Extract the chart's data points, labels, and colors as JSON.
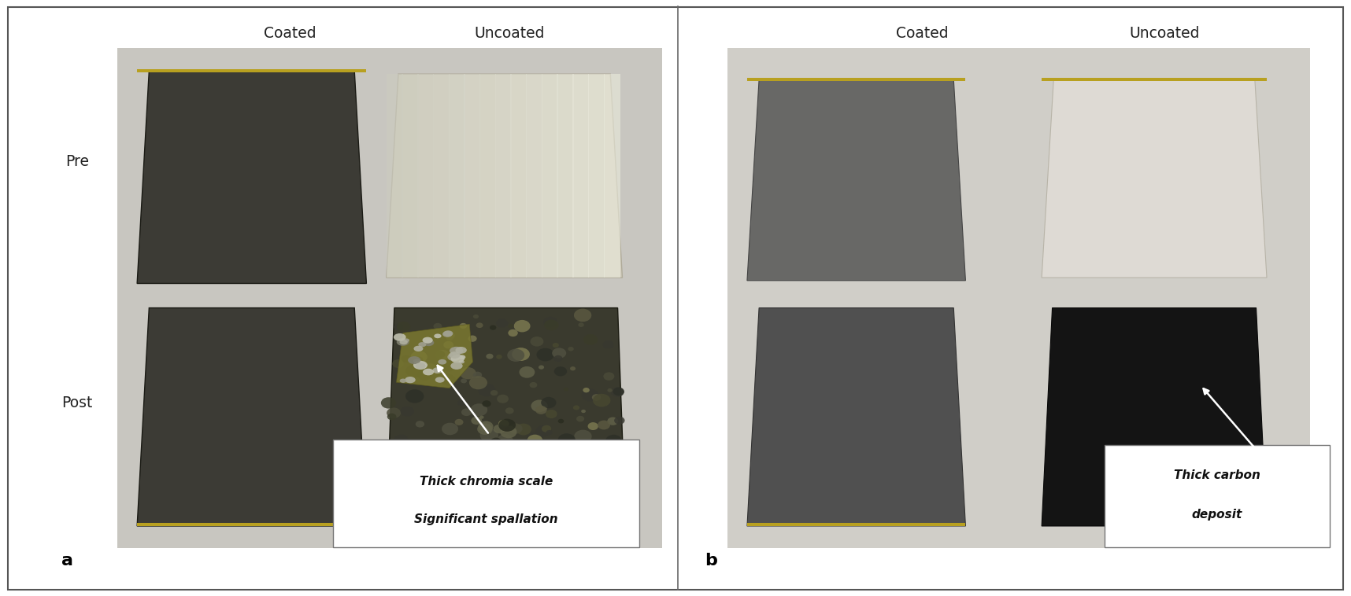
{
  "fig_width": 17.16,
  "fig_height": 7.58,
  "dpi": 100,
  "bg_color": "#ffffff",
  "border_color": "#888888",
  "photo_bg_a": "#c8c6c0",
  "photo_bg_b": "#d0cec8",
  "panel_a": {
    "label": "a",
    "col_labels": [
      "Coated",
      "Uncoated"
    ],
    "row_labels": [
      "Pre",
      "Post"
    ],
    "annotation_text": "Thick chromia scale\nSignificant spallation",
    "pre_coated_color": "#3c3b35",
    "pre_uncoated_color": "#d0ccbc",
    "pre_uncoated_bright": "#e8e4d8",
    "post_coated_color": "#3c3b35",
    "post_uncoated_base": "#3a3a2c",
    "post_uncoated_green": "#6a6830",
    "yellow_edge": "#b8a020"
  },
  "panel_b": {
    "label": "b",
    "col_labels": [
      "Coated",
      "Uncoated"
    ],
    "row_labels": [
      "Pre",
      "Post"
    ],
    "annotation_text": "Thick carbon\ndeposit",
    "pre_coated_color": "#686866",
    "pre_uncoated_color": "#dedad4",
    "post_coated_color": "#505050",
    "post_uncoated_color": "#141414",
    "yellow_edge": "#b8a020"
  }
}
